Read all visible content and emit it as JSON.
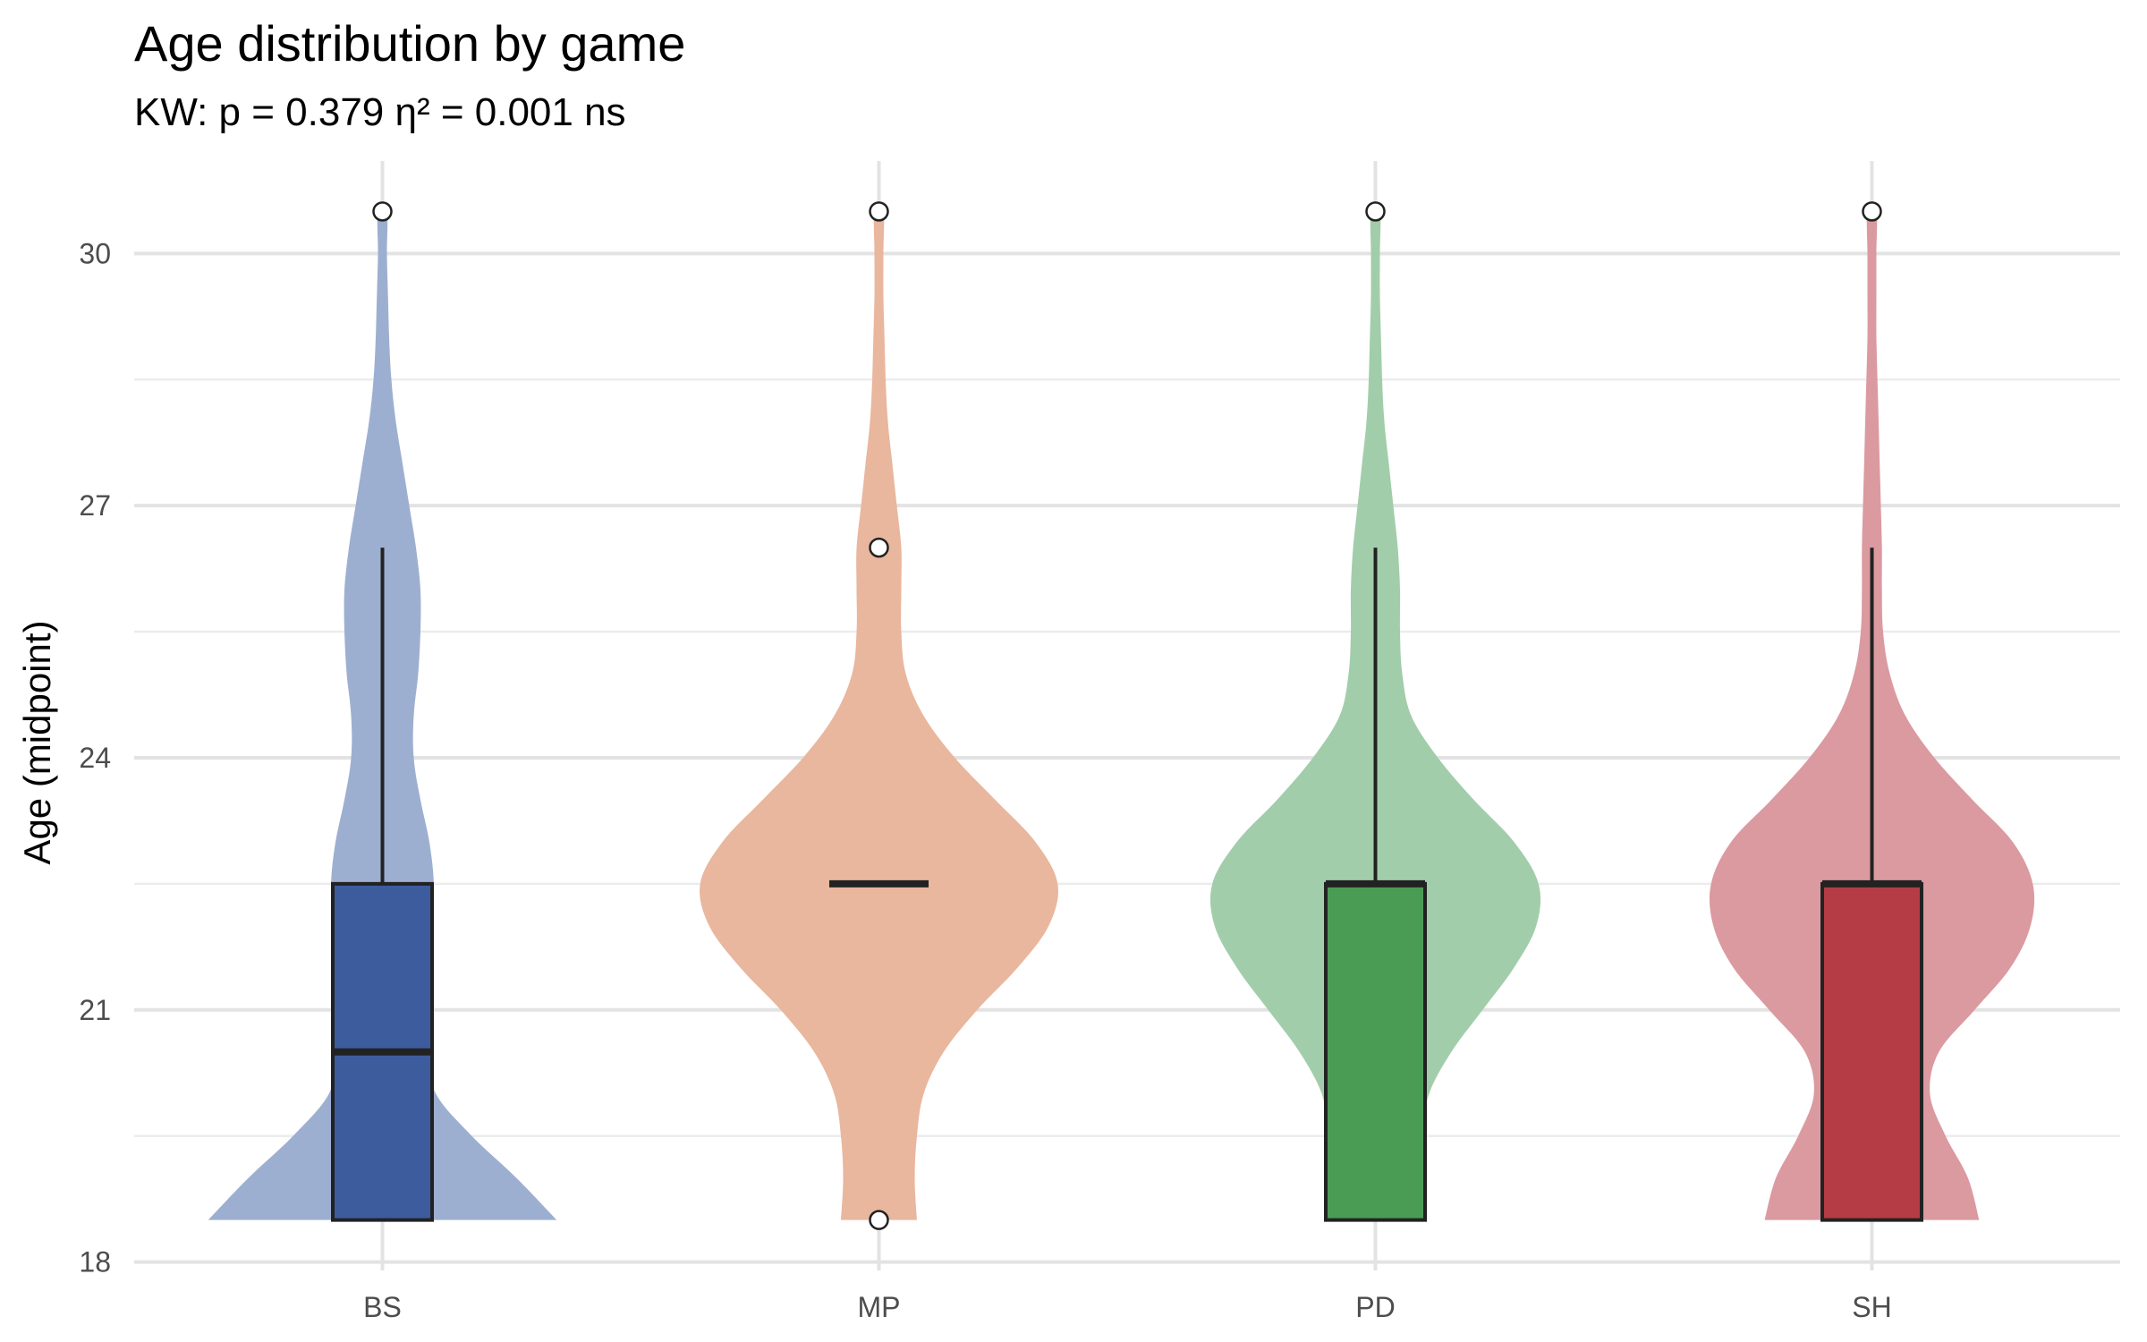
{
  "chart_data": {
    "type": "violin",
    "title": "Age distribution by game",
    "subtitle": "KW: p = 0.379  η² = 0.001  ns",
    "xlabel": "",
    "ylabel": "Age (midpoint)",
    "ylim": [
      17.9,
      31.1
    ],
    "yticks": [
      18,
      21,
      24,
      27,
      30
    ],
    "grid": true,
    "legend": "none",
    "categories": [
      "BS",
      "MP",
      "PD",
      "SH"
    ],
    "series": [
      {
        "category": "BS",
        "fill_color": "#9dafd1",
        "box_color": "#3c5c9e",
        "box": {
          "q1": 18.5,
          "median": 20.5,
          "q3": 22.5,
          "whisker_low": 18.5,
          "whisker_high": 26.5
        },
        "outliers": [
          30.5
        ],
        "density": [
          [
            18.5,
            0.78
          ],
          [
            19.0,
            0.6
          ],
          [
            19.5,
            0.4
          ],
          [
            20.0,
            0.24
          ],
          [
            20.5,
            0.2
          ],
          [
            21.0,
            0.18
          ],
          [
            21.5,
            0.19
          ],
          [
            22.0,
            0.22
          ],
          [
            22.5,
            0.23
          ],
          [
            23.0,
            0.21
          ],
          [
            23.5,
            0.17
          ],
          [
            24.0,
            0.14
          ],
          [
            24.5,
            0.14
          ],
          [
            25.0,
            0.16
          ],
          [
            25.5,
            0.17
          ],
          [
            26.0,
            0.17
          ],
          [
            26.5,
            0.15
          ],
          [
            27.0,
            0.12
          ],
          [
            27.5,
            0.09
          ],
          [
            28.0,
            0.06
          ],
          [
            28.5,
            0.04
          ],
          [
            29.0,
            0.03
          ],
          [
            29.5,
            0.025
          ],
          [
            30.0,
            0.02
          ],
          [
            30.5,
            0.02
          ]
        ]
      },
      {
        "category": "MP",
        "fill_color": "#e9b69e",
        "box_color": "#e0916d",
        "box": {
          "q1": 22.5,
          "median": 22.5,
          "q3": 22.5,
          "whisker_low": 22.5,
          "whisker_high": 22.5
        },
        "outliers": [
          18.5,
          26.5,
          30.5
        ],
        "density": [
          [
            18.5,
            0.17
          ],
          [
            19.0,
            0.16
          ],
          [
            19.5,
            0.17
          ],
          [
            20.0,
            0.2
          ],
          [
            20.5,
            0.29
          ],
          [
            21.0,
            0.44
          ],
          [
            21.5,
            0.62
          ],
          [
            22.0,
            0.76
          ],
          [
            22.5,
            0.8
          ],
          [
            23.0,
            0.7
          ],
          [
            23.5,
            0.52
          ],
          [
            24.0,
            0.34
          ],
          [
            24.5,
            0.2
          ],
          [
            25.0,
            0.12
          ],
          [
            25.5,
            0.1
          ],
          [
            26.0,
            0.1
          ],
          [
            26.5,
            0.1
          ],
          [
            27.0,
            0.08
          ],
          [
            27.5,
            0.06
          ],
          [
            28.0,
            0.04
          ],
          [
            28.5,
            0.03
          ],
          [
            29.0,
            0.025
          ],
          [
            29.5,
            0.02
          ],
          [
            30.0,
            0.02
          ],
          [
            30.5,
            0.02
          ]
        ]
      },
      {
        "category": "PD",
        "fill_color": "#a2cdaa",
        "box_color": "#4a9c55",
        "box": {
          "q1": 18.5,
          "median": 22.5,
          "q3": 22.5,
          "whisker_low": 18.5,
          "whisker_high": 26.5
        },
        "outliers": [
          30.5
        ],
        "density": [
          [
            18.5,
            0.22
          ],
          [
            19.0,
            0.21
          ],
          [
            19.5,
            0.21
          ],
          [
            20.0,
            0.24
          ],
          [
            20.5,
            0.34
          ],
          [
            21.0,
            0.48
          ],
          [
            21.5,
            0.62
          ],
          [
            22.0,
            0.72
          ],
          [
            22.5,
            0.73
          ],
          [
            23.0,
            0.62
          ],
          [
            23.5,
            0.44
          ],
          [
            24.0,
            0.28
          ],
          [
            24.5,
            0.16
          ],
          [
            25.0,
            0.12
          ],
          [
            25.5,
            0.11
          ],
          [
            26.0,
            0.11
          ],
          [
            26.5,
            0.1
          ],
          [
            27.0,
            0.08
          ],
          [
            27.5,
            0.06
          ],
          [
            28.0,
            0.04
          ],
          [
            28.5,
            0.03
          ],
          [
            29.0,
            0.025
          ],
          [
            29.5,
            0.02
          ],
          [
            30.0,
            0.02
          ],
          [
            30.5,
            0.02
          ]
        ]
      },
      {
        "category": "SH",
        "fill_color": "#db9aa0",
        "box_color": "#b53c44",
        "box": {
          "q1": 18.5,
          "median": 22.5,
          "q3": 22.5,
          "whisker_low": 18.5,
          "whisker_high": 26.5
        },
        "outliers": [
          30.5
        ],
        "density": [
          [
            18.5,
            0.48
          ],
          [
            19.0,
            0.43
          ],
          [
            19.5,
            0.33
          ],
          [
            20.0,
            0.26
          ],
          [
            20.5,
            0.3
          ],
          [
            21.0,
            0.46
          ],
          [
            21.5,
            0.62
          ],
          [
            22.0,
            0.71
          ],
          [
            22.5,
            0.72
          ],
          [
            23.0,
            0.63
          ],
          [
            23.5,
            0.45
          ],
          [
            24.0,
            0.28
          ],
          [
            24.5,
            0.15
          ],
          [
            25.0,
            0.08
          ],
          [
            25.5,
            0.05
          ],
          [
            26.0,
            0.045
          ],
          [
            26.5,
            0.045
          ],
          [
            27.0,
            0.04
          ],
          [
            27.5,
            0.035
          ],
          [
            28.0,
            0.03
          ],
          [
            28.5,
            0.025
          ],
          [
            29.0,
            0.02
          ],
          [
            29.5,
            0.02
          ],
          [
            30.0,
            0.02
          ],
          [
            30.5,
            0.02
          ]
        ]
      }
    ]
  }
}
